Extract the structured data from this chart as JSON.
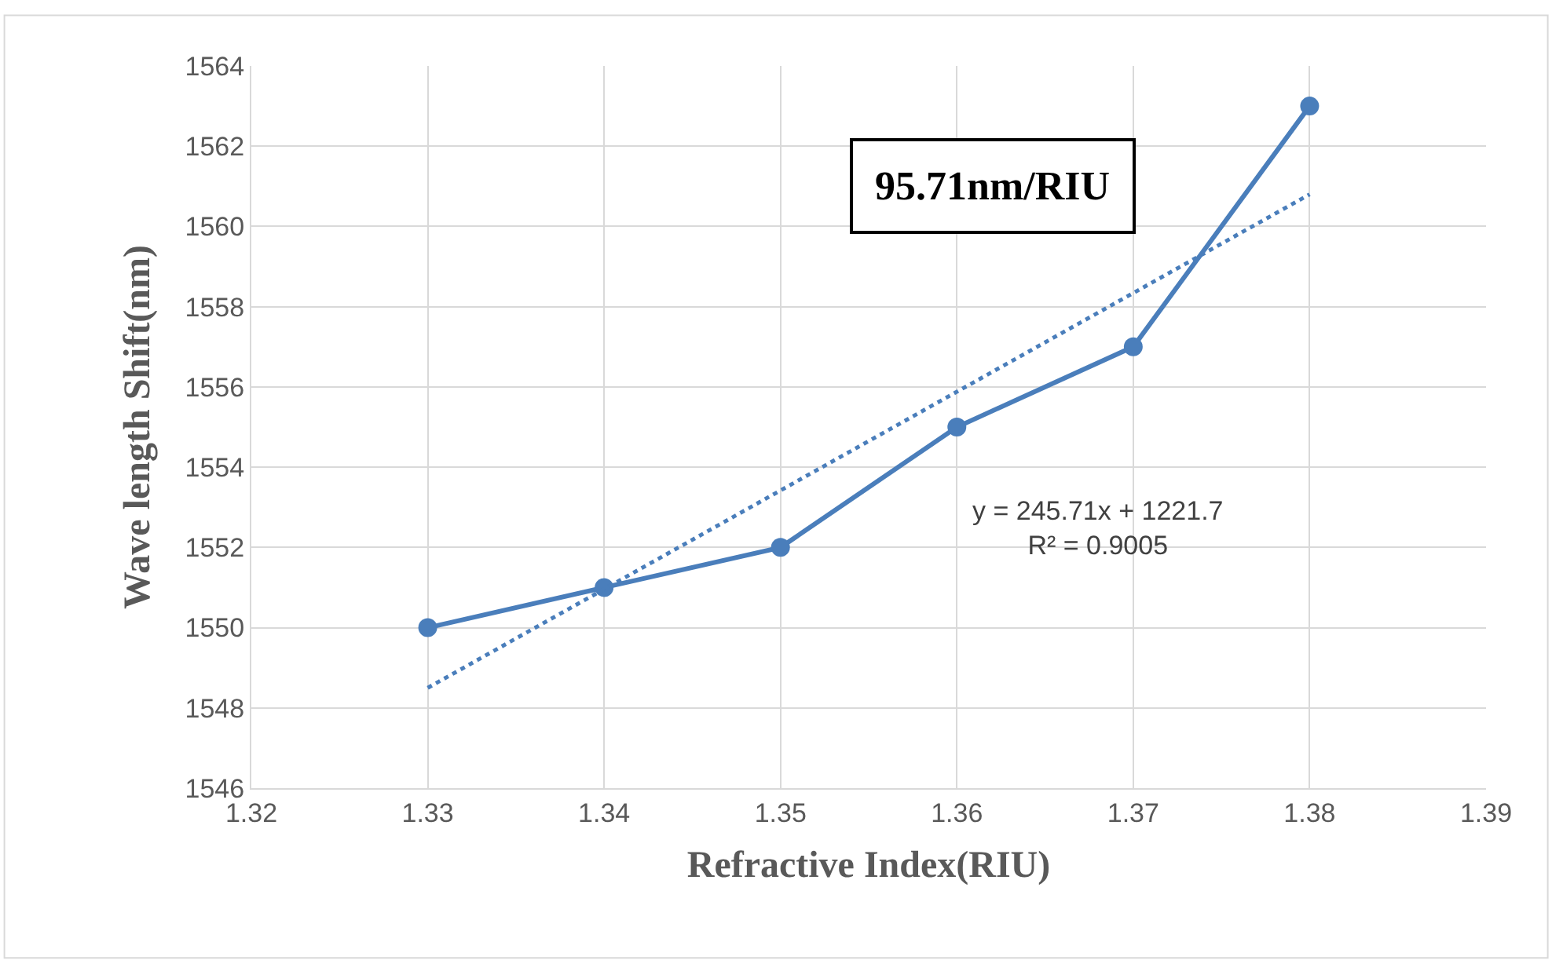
{
  "chart_data": {
    "type": "line",
    "xlabel": "Refractive Index(RIU)",
    "ylabel": "Wave length Shift(nm)",
    "x": [
      1.33,
      1.34,
      1.35,
      1.36,
      1.37,
      1.38
    ],
    "series": [
      {
        "color": "#4a7ebb",
        "values": [
          1550,
          1551,
          1552,
          1555,
          1557,
          1563
        ],
        "marker": "circle",
        "line_style": "solid"
      },
      {
        "type": "line",
        "color": "#4a7ebb",
        "x": [
          1.33,
          1.38
        ],
        "values": [
          1548.5,
          1560.8
        ],
        "marker": "none",
        "line_style": "dotted"
      }
    ],
    "xlim": [
      1.32,
      1.39
    ],
    "xticks": [
      {
        "value": 1.32,
        "label": "1.32"
      },
      {
        "value": 1.33,
        "label": "1.33"
      },
      {
        "value": 1.34,
        "label": "1.34"
      },
      {
        "value": 1.35,
        "label": "1.35"
      },
      {
        "value": 1.36,
        "label": "1.36"
      },
      {
        "value": 1.37,
        "label": "1.37"
      },
      {
        "value": 1.38,
        "label": "1.38"
      },
      {
        "value": 1.39,
        "label": "1.39"
      }
    ],
    "ylim": [
      1546,
      1564
    ],
    "yticks": [
      1546,
      1548,
      1550,
      1552,
      1554,
      1556,
      1558,
      1560,
      1562,
      1564
    ],
    "grid": true,
    "annotations": [
      "95.71nm/RIU",
      "y = 245.71x + 1221.7\nR² = 0.9005"
    ]
  }
}
